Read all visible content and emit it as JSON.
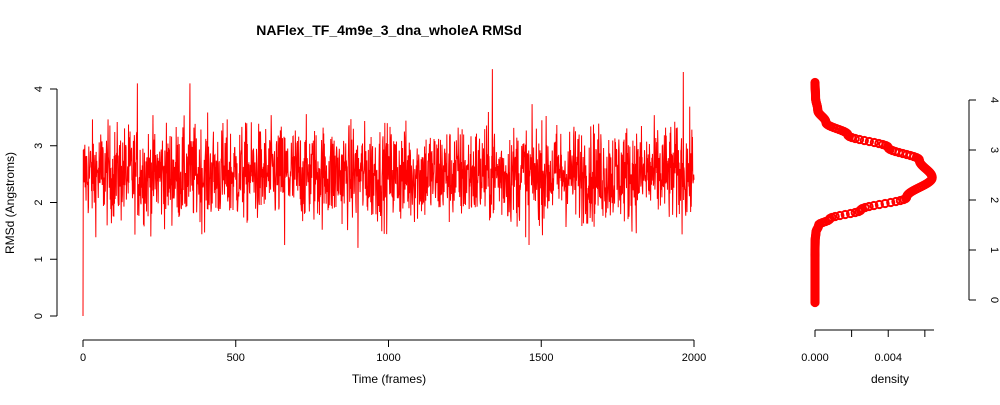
{
  "chart_data": [
    {
      "type": "line",
      "title": "NAFlex_TF_4m9e_3_dna_wholeA RMSd",
      "xlabel": "Time (frames)",
      "ylabel": "RMSd (Angstroms)",
      "xlim": [
        0,
        2000
      ],
      "ylim": [
        0,
        4
      ],
      "x_ticks": [
        "0",
        "500",
        "1000",
        "1500",
        "2000"
      ],
      "y_ticks": [
        "0",
        "1",
        "2",
        "3",
        "4"
      ],
      "color": "#ff0000",
      "grid": false,
      "series": [
        {
          "n_frames": 2001,
          "start_value": 0.0,
          "typical_mean": 2.5,
          "typical_range": [
            1.2,
            4.35
          ],
          "summary_points": [
            {
              "x": 0,
              "y": 0.0
            },
            {
              "x": 5,
              "y": 2.7
            },
            {
              "x": 100,
              "y": 2.5
            },
            {
              "x": 178,
              "y": 4.1
            },
            {
              "x": 350,
              "y": 4.1
            },
            {
              "x": 500,
              "y": 2.4
            },
            {
              "x": 660,
              "y": 1.25
            },
            {
              "x": 900,
              "y": 1.2
            },
            {
              "x": 1000,
              "y": 2.6
            },
            {
              "x": 1340,
              "y": 4.35
            },
            {
              "x": 1460,
              "y": 1.25
            },
            {
              "x": 1965,
              "y": 4.3
            },
            {
              "x": 2000,
              "y": 2.4
            }
          ]
        }
      ]
    },
    {
      "type": "scatter",
      "title": "",
      "xlabel": "density",
      "ylabel": "",
      "xlim": [
        0,
        0.0065
      ],
      "ylim": [
        0,
        4.35
      ],
      "x_ticks": [
        "0.000",
        "0.004"
      ],
      "y_ticks": [
        "0",
        "1",
        "2",
        "3",
        "4"
      ],
      "color": "#ff0000",
      "series": [
        {
          "x": [
            0.0,
            0.0,
            0.0,
            1e-05,
            5e-05,
            0.0002,
            0.0008,
            0.0025,
            0.005,
            0.0064,
            0.0057,
            0.004,
            0.0018,
            0.0006,
            0.00015,
            3e-05,
            0.0
          ],
          "y": [
            -0.05,
            0.5,
            1.0,
            1.2,
            1.35,
            1.5,
            1.62,
            1.8,
            2.05,
            2.45,
            2.8,
            3.05,
            3.3,
            3.55,
            3.8,
            4.05,
            4.35
          ]
        }
      ]
    }
  ]
}
